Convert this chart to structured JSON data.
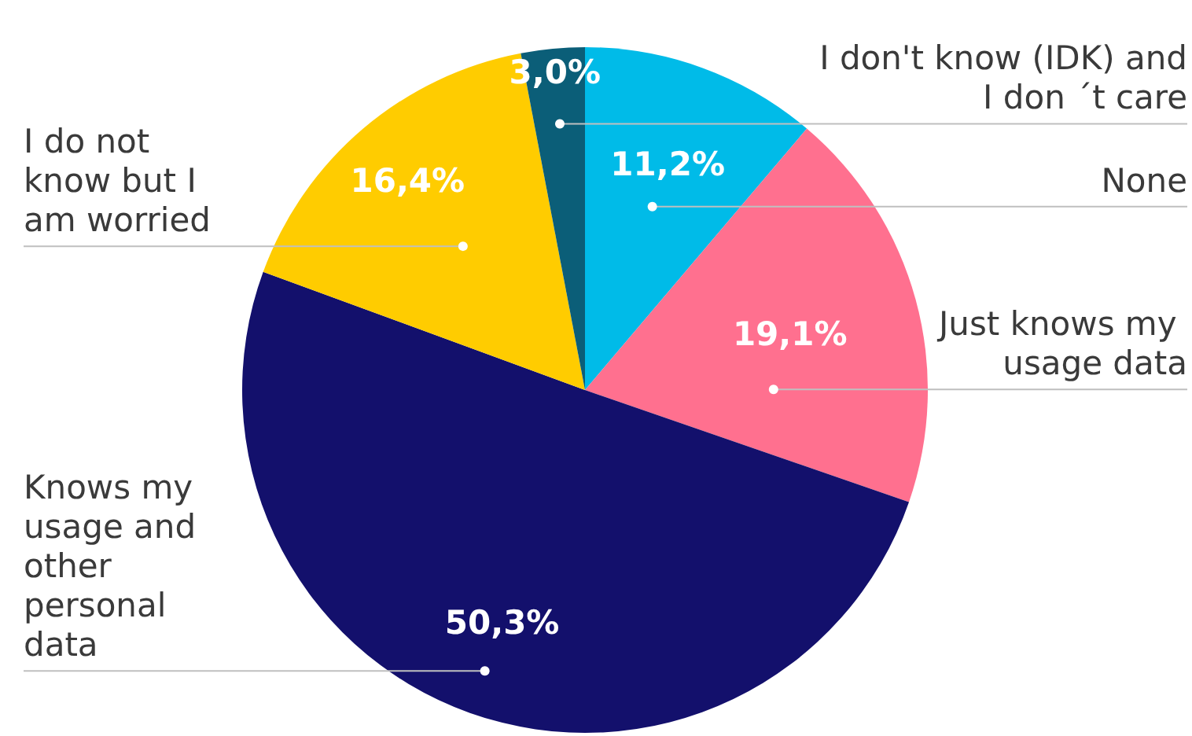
{
  "chart_data": {
    "type": "pie",
    "categories": [
      "None",
      "Just knows my usage data",
      "Knows my usage and other personal data",
      "I do not know but I am worried",
      "I don't know (IDK) and I don ´t care"
    ],
    "values": [
      11.2,
      19.1,
      50.3,
      16.4,
      3.0
    ],
    "value_labels": [
      "11,2%",
      "19,1%",
      "50,3%",
      "16,4%",
      "3,0%"
    ],
    "colors": [
      "#00bbe8",
      "#ff708f",
      "#13106c",
      "#ffcc00",
      "#0b5e78"
    ],
    "legend": false
  }
}
